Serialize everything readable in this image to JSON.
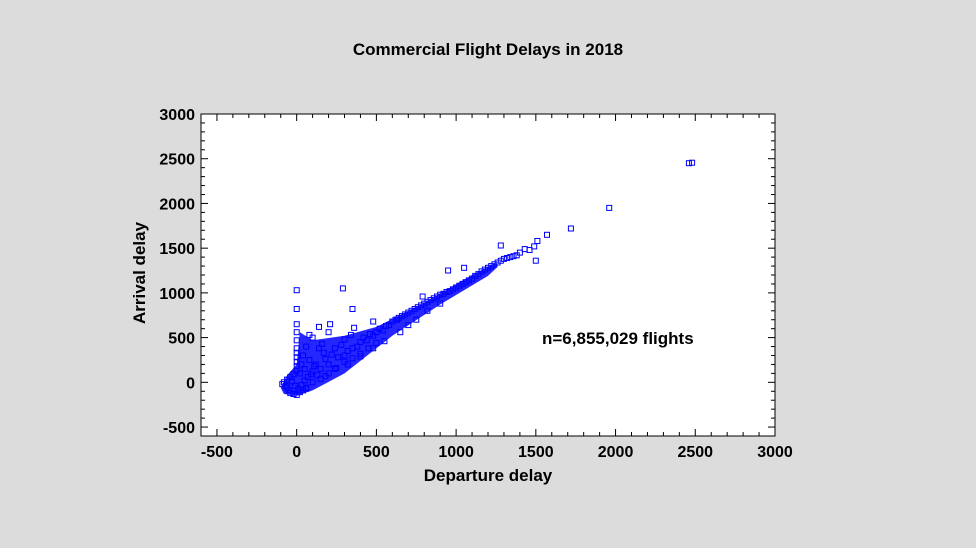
{
  "chart_data": {
    "type": "scatter",
    "title": "Commercial Flight Delays in 2018",
    "xlabel": "Departure delay",
    "ylabel": "Arrival delay",
    "xlim": [
      -600,
      3000
    ],
    "ylim": [
      -600,
      3000
    ],
    "xticks": [
      -500,
      0,
      500,
      1000,
      1500,
      2000,
      2500,
      3000
    ],
    "yticks": [
      -500,
      0,
      500,
      1000,
      1500,
      2000,
      2500,
      3000
    ],
    "annotation": "n=6,855,029 flights",
    "marker": "open-square",
    "color": "#0000ff",
    "grid": false,
    "points": [
      [
        -90,
        -20
      ],
      [
        -70,
        -40
      ],
      [
        -60,
        -60
      ],
      [
        -50,
        -90
      ],
      [
        -40,
        -120
      ],
      [
        -20,
        -130
      ],
      [
        0,
        -140
      ],
      [
        20,
        -110
      ],
      [
        40,
        -90
      ],
      [
        60,
        -70
      ],
      [
        -80,
        0
      ],
      [
        -60,
        30
      ],
      [
        -40,
        60
      ],
      [
        -20,
        90
      ],
      [
        0,
        130
      ],
      [
        0,
        180
      ],
      [
        0,
        230
      ],
      [
        0,
        280
      ],
      [
        0,
        330
      ],
      [
        0,
        380
      ],
      [
        0,
        470
      ],
      [
        0,
        560
      ],
      [
        0,
        650
      ],
      [
        0,
        820
      ],
      [
        0,
        1030
      ],
      [
        20,
        100
      ],
      [
        30,
        200
      ],
      [
        40,
        300
      ],
      [
        50,
        150
      ],
      [
        60,
        400
      ],
      [
        80,
        250
      ],
      [
        100,
        120
      ],
      [
        100,
        500
      ],
      [
        120,
        200
      ],
      [
        140,
        380
      ],
      [
        150,
        150
      ],
      [
        160,
        430
      ],
      [
        180,
        260
      ],
      [
        200,
        200
      ],
      [
        200,
        560
      ],
      [
        220,
        310
      ],
      [
        240,
        380
      ],
      [
        260,
        280
      ],
      [
        280,
        420
      ],
      [
        300,
        300
      ],
      [
        300,
        480
      ],
      [
        320,
        350
      ],
      [
        340,
        530
      ],
      [
        350,
        380
      ],
      [
        360,
        610
      ],
      [
        380,
        400
      ],
      [
        400,
        450
      ],
      [
        420,
        500
      ],
      [
        440,
        470
      ],
      [
        460,
        540
      ],
      [
        480,
        520
      ],
      [
        500,
        560
      ],
      [
        520,
        600
      ],
      [
        540,
        580
      ],
      [
        560,
        630
      ],
      [
        580,
        640
      ],
      [
        600,
        680
      ],
      [
        620,
        700
      ],
      [
        640,
        720
      ],
      [
        660,
        740
      ],
      [
        680,
        760
      ],
      [
        700,
        780
      ],
      [
        720,
        800
      ],
      [
        740,
        820
      ],
      [
        760,
        840
      ],
      [
        780,
        860
      ],
      [
        800,
        880
      ],
      [
        820,
        900
      ],
      [
        840,
        920
      ],
      [
        860,
        940
      ],
      [
        880,
        960
      ],
      [
        900,
        980
      ],
      [
        920,
        990
      ],
      [
        940,
        1010
      ],
      [
        960,
        1020
      ],
      [
        980,
        1040
      ],
      [
        1000,
        1060
      ],
      [
        1020,
        1080
      ],
      [
        1040,
        1100
      ],
      [
        1060,
        1120
      ],
      [
        1080,
        1140
      ],
      [
        1100,
        1160
      ],
      [
        1120,
        1190
      ],
      [
        1140,
        1210
      ],
      [
        1160,
        1240
      ],
      [
        1180,
        1260
      ],
      [
        1200,
        1280
      ],
      [
        1220,
        1300
      ],
      [
        1240,
        1320
      ],
      [
        1260,
        1340
      ],
      [
        1280,
        1360
      ],
      [
        1300,
        1380
      ],
      [
        1320,
        1390
      ],
      [
        1340,
        1400
      ],
      [
        1360,
        1410
      ],
      [
        1380,
        1420
      ],
      [
        1400,
        1450
      ],
      [
        1430,
        1490
      ],
      [
        1460,
        1480
      ],
      [
        1490,
        1520
      ],
      [
        1510,
        1580
      ],
      [
        1570,
        1650
      ],
      [
        1500,
        1360
      ],
      [
        1280,
        1530
      ],
      [
        1050,
        1280
      ],
      [
        950,
        1250
      ],
      [
        790,
        960
      ],
      [
        630,
        700
      ],
      [
        480,
        680
      ],
      [
        350,
        820
      ],
      [
        290,
        1050
      ],
      [
        210,
        650
      ],
      [
        140,
        620
      ],
      [
        80,
        530
      ],
      [
        180,
        70
      ],
      [
        240,
        150
      ],
      [
        320,
        200
      ],
      [
        400,
        290
      ],
      [
        480,
        380
      ],
      [
        550,
        460
      ],
      [
        650,
        560
      ],
      [
        700,
        640
      ],
      [
        750,
        700
      ],
      [
        820,
        800
      ],
      [
        900,
        880
      ],
      [
        60,
        -60
      ],
      [
        100,
        0
      ],
      [
        150,
        40
      ],
      [
        200,
        100
      ],
      [
        250,
        160
      ],
      [
        300,
        230
      ],
      [
        350,
        270
      ],
      [
        400,
        320
      ],
      [
        450,
        380
      ],
      [
        500,
        440
      ],
      [
        -30,
        10
      ],
      [
        -10,
        -40
      ],
      [
        10,
        -70
      ],
      [
        30,
        -30
      ],
      [
        50,
        20
      ],
      [
        70,
        60
      ],
      [
        90,
        90
      ],
      [
        110,
        180
      ],
      [
        130,
        80
      ],
      [
        170,
        330
      ],
      [
        1720,
        1720
      ],
      [
        1960,
        1950
      ],
      [
        2460,
        2450
      ],
      [
        2480,
        2455
      ]
    ]
  }
}
